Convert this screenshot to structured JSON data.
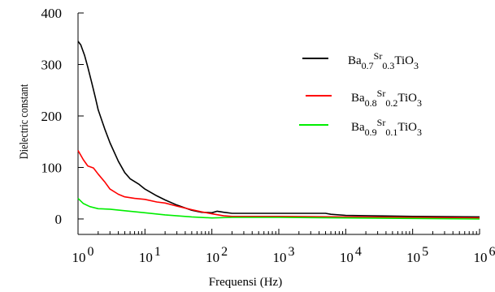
{
  "chart_data": {
    "type": "line",
    "x_scale": "log",
    "xlabel": "Frequensi (Hz)",
    "ylabel": "Dielectric constant",
    "xlim": [
      1,
      1000000
    ],
    "ylim": [
      -30,
      400
    ],
    "x_ticks": [
      {
        "value": 1,
        "base": "10",
        "exp": "0"
      },
      {
        "value": 10,
        "base": "10",
        "exp": "1"
      },
      {
        "value": 100,
        "base": "10",
        "exp": "2"
      },
      {
        "value": 1000,
        "base": "10",
        "exp": "3"
      },
      {
        "value": 10000,
        "base": "10",
        "exp": "4"
      },
      {
        "value": 100000,
        "base": "10",
        "exp": "5"
      },
      {
        "value": 1000000,
        "base": "10",
        "exp": "6"
      }
    ],
    "y_ticks": [
      {
        "value": 0,
        "label": "0"
      },
      {
        "value": 100,
        "label": "100"
      },
      {
        "value": 200,
        "label": "200"
      },
      {
        "value": 300,
        "label": "300"
      },
      {
        "value": 400,
        "label": "400"
      }
    ],
    "legend_position": "top-right",
    "series": [
      {
        "name": "Ba0.7Sr0.3TiO3",
        "legend_parts": [
          {
            "t": "Ba",
            "s": "base"
          },
          {
            "t": "0.7",
            "s": "sub"
          },
          {
            "t": "Sr",
            "s": "sup"
          },
          {
            "t": "0.3",
            "s": "sub"
          },
          {
            "t": "TiO",
            "s": "base"
          },
          {
            "t": "3",
            "s": "sub"
          }
        ],
        "color": "#000000",
        "x": [
          1,
          1.1,
          1.25,
          1.4,
          1.6,
          1.8,
          2,
          2.5,
          3,
          4,
          5,
          6,
          8,
          10,
          15,
          20,
          30,
          50,
          70,
          100,
          120,
          150,
          200,
          500,
          1000,
          2000,
          5000,
          6000,
          10000,
          100000,
          1000000
        ],
        "y": [
          345,
          338,
          318,
          295,
          265,
          238,
          212,
          175,
          148,
          112,
          90,
          78,
          68,
          58,
          45,
          37,
          27,
          17,
          13,
          12,
          15,
          13,
          11,
          11,
          11,
          11,
          11,
          9,
          7,
          5,
          4
        ]
      },
      {
        "name": "Ba0.8Sr0.2TiO3",
        "legend_parts": [
          {
            "t": "Ba",
            "s": "base"
          },
          {
            "t": "0.8",
            "s": "sub"
          },
          {
            "t": "Sr",
            "s": "sup"
          },
          {
            "t": "0.2",
            "s": "sub"
          },
          {
            "t": "TiO",
            "s": "base"
          },
          {
            "t": "3",
            "s": "sub"
          }
        ],
        "color": "#ff0000",
        "x": [
          1,
          1.2,
          1.4,
          1.7,
          2,
          2.5,
          3,
          4,
          5,
          7,
          10,
          15,
          20,
          30,
          50,
          70,
          100,
          150,
          200,
          500,
          1000,
          10000,
          100000,
          1000000
        ],
        "y": [
          133,
          115,
          103,
          99,
          87,
          72,
          58,
          48,
          43,
          40,
          38,
          33,
          31,
          25,
          18,
          14,
          10,
          6,
          5,
          5,
          5,
          4,
          3,
          2
        ]
      },
      {
        "name": "Ba0.9Sr0.1TiO3",
        "legend_parts": [
          {
            "t": "Ba",
            "s": "base"
          },
          {
            "t": "0.9",
            "s": "sub"
          },
          {
            "t": "Sr",
            "s": "sup"
          },
          {
            "t": "0.1",
            "s": "sub"
          },
          {
            "t": "TiO",
            "s": "base"
          },
          {
            "t": "3",
            "s": "sub"
          }
        ],
        "color": "#00ee00",
        "x": [
          1,
          1.2,
          1.5,
          2,
          3,
          5,
          10,
          20,
          50,
          100,
          200,
          1000,
          10000,
          100000,
          1000000
        ],
        "y": [
          40,
          30,
          24,
          20,
          19,
          16,
          12,
          8,
          4,
          2,
          3,
          3,
          2,
          1,
          0
        ]
      }
    ]
  }
}
